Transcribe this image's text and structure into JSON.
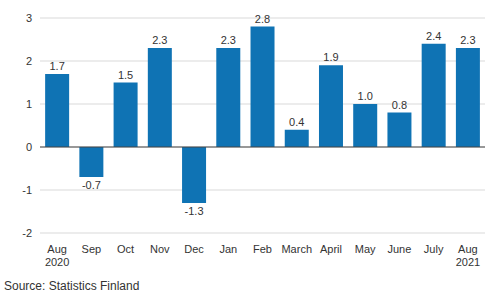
{
  "chart_data": {
    "type": "bar",
    "categories": [
      "Aug 2020",
      "Sep",
      "Oct",
      "Nov",
      "Dec",
      "Jan",
      "Feb",
      "March",
      "April",
      "May",
      "June",
      "July",
      "Aug 2021"
    ],
    "values": [
      1.7,
      -0.7,
      1.5,
      2.3,
      -1.3,
      2.3,
      2.8,
      0.4,
      1.9,
      1.0,
      0.8,
      2.4,
      2.3
    ],
    "value_labels": [
      "1.7",
      "-0.7",
      "1.5",
      "2.3",
      "-1.3",
      "2.3",
      "2.8",
      "0.4",
      "1.9",
      "1.0",
      "0.8",
      "2.4",
      "2.3"
    ],
    "color": "#0f73b4",
    "ylim": [
      -2,
      3
    ],
    "yticks": [
      -2,
      -1,
      0,
      1,
      2,
      3
    ],
    "grid": true,
    "data_labels": true,
    "source": "Source: Statistics Finland"
  }
}
